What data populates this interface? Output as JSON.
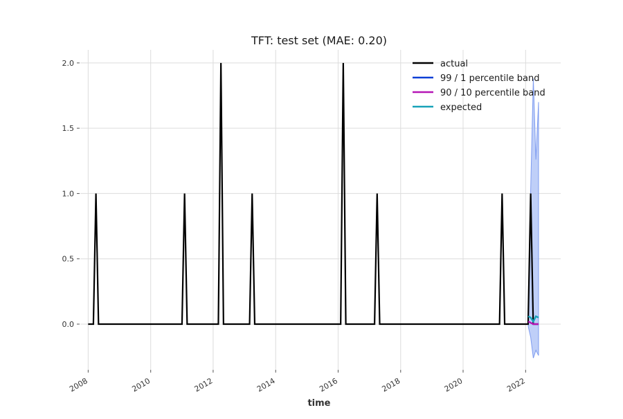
{
  "chart_data": {
    "type": "line",
    "title": "TFT: test set (MAE: 0.20)",
    "xlabel": "time",
    "ylabel": "",
    "xlim": [
      "2007-10-01",
      "2023-02-15"
    ],
    "ylim": [
      -0.35,
      2.1
    ],
    "x_ticks": [
      {
        "value": "2008-01-01",
        "label": "2008"
      },
      {
        "value": "2010-01-01",
        "label": "2010"
      },
      {
        "value": "2012-01-01",
        "label": "2012"
      },
      {
        "value": "2014-01-01",
        "label": "2014"
      },
      {
        "value": "2016-01-01",
        "label": "2016"
      },
      {
        "value": "2018-01-01",
        "label": "2018"
      },
      {
        "value": "2020-01-01",
        "label": "2020"
      },
      {
        "value": "2022-01-01",
        "label": "2022"
      }
    ],
    "y_ticks": [
      {
        "value": 0.0,
        "label": "0.0"
      },
      {
        "value": 0.5,
        "label": "0.5"
      },
      {
        "value": 1.0,
        "label": "1.0"
      },
      {
        "value": 1.5,
        "label": "1.5"
      },
      {
        "value": 2.0,
        "label": "2.0"
      }
    ],
    "grid": true,
    "legend_position": "top-right",
    "series": [
      {
        "name": "actual",
        "color": "#000000",
        "spikes": [
          {
            "x": "2008-04-01",
            "y": 1
          },
          {
            "x": "2011-02-01",
            "y": 1
          },
          {
            "x": "2012-04-01",
            "y": 2
          },
          {
            "x": "2013-04-01",
            "y": 1
          },
          {
            "x": "2016-03-01",
            "y": 2
          },
          {
            "x": "2017-04-01",
            "y": 1
          },
          {
            "x": "2021-04-01",
            "y": 1
          },
          {
            "x": "2022-03-01",
            "y": 1
          }
        ],
        "start": "2008-01-01",
        "end": "2022-06-01",
        "baseline": 0
      },
      {
        "name": "99 / 1 percentile band",
        "color": "#0a3fd6",
        "fill": "#a9bff5",
        "band": {
          "x": [
            "2022-02-01",
            "2022-03-01",
            "2022-04-01",
            "2022-05-01",
            "2022-06-01"
          ],
          "low": [
            -0.02,
            -0.1,
            -0.26,
            -0.2,
            -0.24
          ],
          "high": [
            0.1,
            1.03,
            1.88,
            1.26,
            1.7
          ]
        }
      },
      {
        "name": "90 / 10 percentile band",
        "color": "#b515b5",
        "x": [
          "2022-02-01",
          "2022-03-01",
          "2022-04-01",
          "2022-05-01",
          "2022-06-01"
        ],
        "values": [
          0.02,
          0.01,
          0.0,
          0.0,
          0.0
        ]
      },
      {
        "name": "expected",
        "color": "#17a2b8",
        "x": [
          "2022-02-01",
          "2022-03-01",
          "2022-04-01",
          "2022-05-01",
          "2022-06-01"
        ],
        "values": [
          0.06,
          0.05,
          0.02,
          0.06,
          0.05
        ]
      }
    ]
  }
}
